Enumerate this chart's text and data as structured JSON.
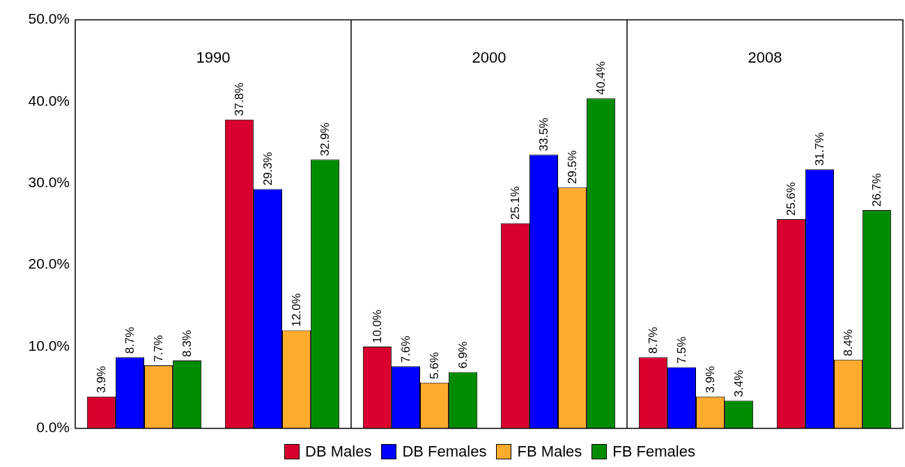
{
  "chart_data": {
    "type": "bar",
    "categories": [
      null,
      null,
      null,
      null,
      null,
      null
    ],
    "annotations": [
      "1990",
      "2000",
      "2008"
    ],
    "ylim": [
      0,
      50
    ],
    "yticks": [
      {
        "value": 0,
        "label": "0.0%"
      },
      {
        "value": 10,
        "label": "10.0%"
      },
      {
        "value": 20,
        "label": "20.0%"
      },
      {
        "value": 30,
        "label": "30.0%"
      },
      {
        "value": 40,
        "label": "40.0%"
      },
      {
        "value": 50,
        "label": "50.0%"
      }
    ],
    "grid": false,
    "legend": "bottom",
    "series": [
      {
        "name": "DB Males",
        "color": "#d9002f",
        "values": [
          3.9,
          37.8,
          10.0,
          25.1,
          8.7,
          25.6
        ],
        "value_labels": [
          "3.9%",
          "37.8%",
          "10.0%",
          "25.1%",
          "8.7%",
          "25.6%"
        ]
      },
      {
        "name": "DB Females",
        "color": "#0000ff",
        "values": [
          8.7,
          29.3,
          7.6,
          33.5,
          7.5,
          31.7
        ],
        "value_labels": [
          "8.7%",
          "29.3%",
          "7.6%",
          "33.5%",
          "7.5%",
          "31.7%"
        ]
      },
      {
        "name": "FB Males",
        "color": "#ffab2e",
        "values": [
          7.7,
          12.0,
          5.6,
          29.5,
          3.9,
          8.4
        ],
        "value_labels": [
          "7.7%",
          "12.0%",
          "5.6%",
          "29.5%",
          "3.9%",
          "8.4%"
        ]
      },
      {
        "name": "FB Females",
        "color": "#008c00",
        "values": [
          8.3,
          32.9,
          6.9,
          40.4,
          3.4,
          26.7
        ],
        "value_labels": [
          "8.3%",
          "32.9%",
          "6.9%",
          "40.4%",
          "3.4%",
          "26.7%"
        ]
      }
    ]
  }
}
